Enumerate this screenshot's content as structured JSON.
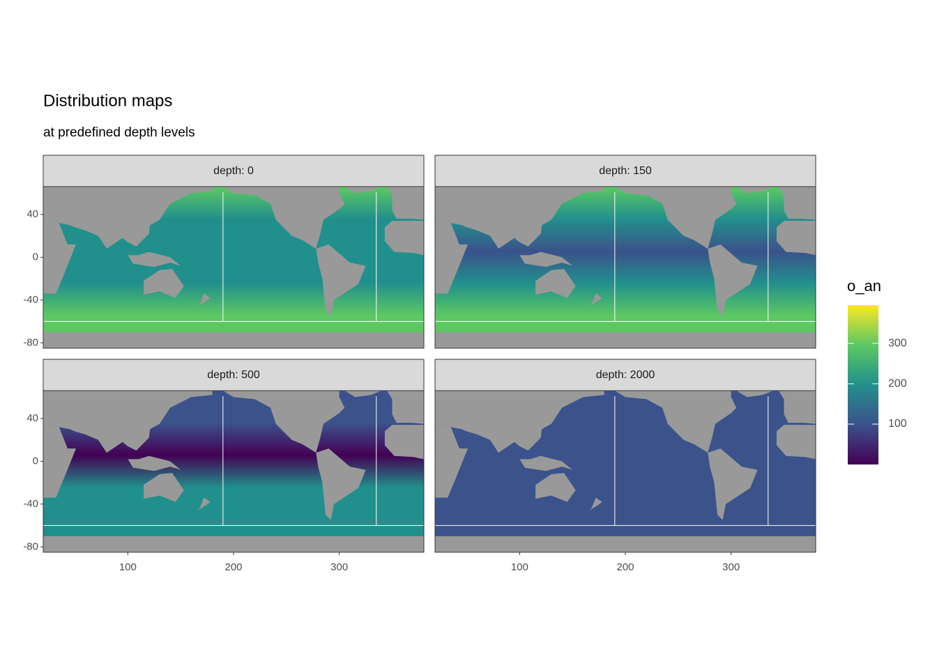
{
  "chart_data": {
    "type": "raster",
    "title": "Distribution maps",
    "subtitle": "at predefined depth levels",
    "facets": [
      "depth: 0",
      "depth: 150",
      "depth: 500",
      "depth: 2000"
    ],
    "xlim": [
      20,
      380
    ],
    "xticks": [
      100,
      200,
      300
    ],
    "ylim": [
      -85,
      66
    ],
    "yticks": [
      -80,
      -40,
      0,
      40
    ],
    "vlines": [
      190,
      335
    ],
    "hline": -60,
    "land_color": "#999999",
    "colorbar": {
      "title": "o_an",
      "limits": [
        0,
        395
      ],
      "ticks": [
        100,
        200,
        300
      ],
      "colors": [
        "#440154",
        "#3b528b",
        "#21908c",
        "#5dc863",
        "#fde725"
      ]
    }
  }
}
